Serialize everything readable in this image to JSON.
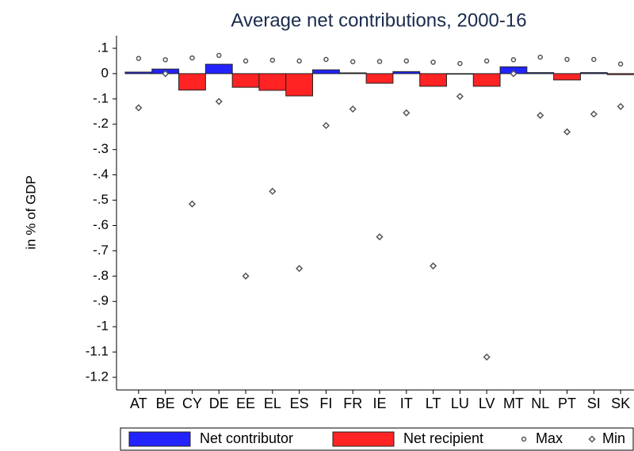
{
  "chart_data": {
    "type": "bar",
    "title": "Average net contributions, 2000-16",
    "y_label": "in % of GDP",
    "categories": [
      "AT",
      "BE",
      "CY",
      "DE",
      "EE",
      "EL",
      "ES",
      "FI",
      "FR",
      "IE",
      "IT",
      "LT",
      "LU",
      "LV",
      "MT",
      "NL",
      "PT",
      "SI",
      "SK"
    ],
    "series": [
      {
        "name": "Net contributor",
        "type": "bar",
        "color": "#2323ff",
        "values": [
          0.006,
          0.018,
          null,
          0.037,
          null,
          null,
          null,
          0.015,
          0.003,
          null,
          0.008,
          null,
          null,
          null,
          0.027,
          0.004,
          null,
          0.004,
          null
        ]
      },
      {
        "name": "Net recipient",
        "type": "bar",
        "color": "#ff2323",
        "values": [
          null,
          null,
          -0.065,
          null,
          -0.054,
          -0.066,
          -0.088,
          null,
          null,
          -0.038,
          null,
          -0.05,
          -0.002,
          -0.05,
          null,
          null,
          -0.025,
          null,
          -0.004
        ]
      },
      {
        "name": "Max",
        "type": "scatter",
        "marker": "circle",
        "color": "#555555",
        "values": [
          0.06,
          0.055,
          0.062,
          0.072,
          0.05,
          0.053,
          0.05,
          0.056,
          0.047,
          0.048,
          0.05,
          0.045,
          0.04,
          0.05,
          0.055,
          0.065,
          0.056,
          0.056,
          0.038
        ]
      },
      {
        "name": "Min",
        "type": "scatter",
        "marker": "diamond",
        "color": "#555555",
        "values": [
          -0.135,
          0.0,
          -0.515,
          -0.11,
          -0.8,
          -0.465,
          -0.77,
          -0.205,
          -0.14,
          -0.645,
          -0.155,
          -0.76,
          -0.09,
          -1.12,
          0.0,
          -0.165,
          -0.23,
          -0.16,
          -0.13
        ]
      }
    ],
    "ylim": [
      -1.25,
      0.15
    ],
    "yticks": [
      {
        "value": 0.1,
        "label": ".1"
      },
      0,
      {
        "value": -0.1,
        "label": "-.1"
      },
      {
        "value": -0.2,
        "label": "-.2"
      },
      {
        "value": -0.3,
        "label": "-.3"
      },
      {
        "value": -0.4,
        "label": "-.4"
      },
      {
        "value": -0.5,
        "label": "-.5"
      },
      {
        "value": -0.6,
        "label": "-.6"
      },
      {
        "value": -0.7,
        "label": "-.7"
      },
      {
        "value": -0.8,
        "label": "-.8"
      },
      {
        "value": -0.9,
        "label": "-.9"
      },
      -1,
      -1.1,
      -1.2
    ],
    "grid": false,
    "legend": "bottom"
  }
}
